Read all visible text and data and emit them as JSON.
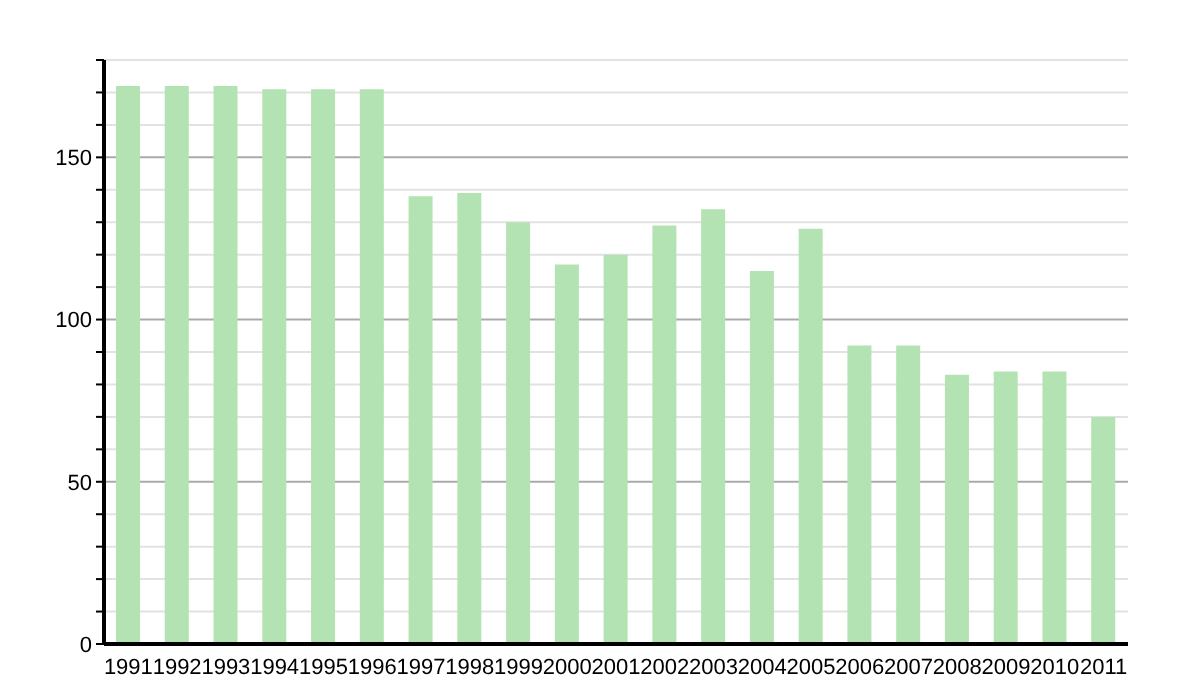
{
  "chart_data": {
    "type": "bar",
    "categories": [
      "1991",
      "1992",
      "1993",
      "1994",
      "1995",
      "1996",
      "1997",
      "1998",
      "1999",
      "2000",
      "2001",
      "2002",
      "2003",
      "2004",
      "2005",
      "2006",
      "2007",
      "2008",
      "2009",
      "2010",
      "2011"
    ],
    "values": [
      172,
      172,
      172,
      171,
      171,
      171,
      138,
      139,
      130,
      117,
      120,
      129,
      134,
      115,
      128,
      92,
      92,
      83,
      84,
      84,
      70
    ],
    "color": "#b3e3b3",
    "ylim": [
      0,
      180
    ],
    "yticks": [
      0,
      {
        "value": 10,
        "label": null
      },
      {
        "value": 20,
        "label": null
      },
      {
        "value": 30,
        "label": null
      },
      {
        "value": 40,
        "label": null
      },
      50,
      {
        "value": 60,
        "label": null
      },
      {
        "value": 70,
        "label": null
      },
      {
        "value": 80,
        "label": null
      },
      {
        "value": 90,
        "label": null
      },
      100,
      {
        "value": 110,
        "label": null
      },
      {
        "value": 120,
        "label": null
      },
      {
        "value": 130,
        "label": null
      },
      {
        "value": 140,
        "label": null
      },
      150,
      {
        "value": 160,
        "label": null
      },
      {
        "value": 170,
        "label": null
      },
      {
        "value": 180,
        "label": null
      }
    ],
    "grid": "y"
  }
}
